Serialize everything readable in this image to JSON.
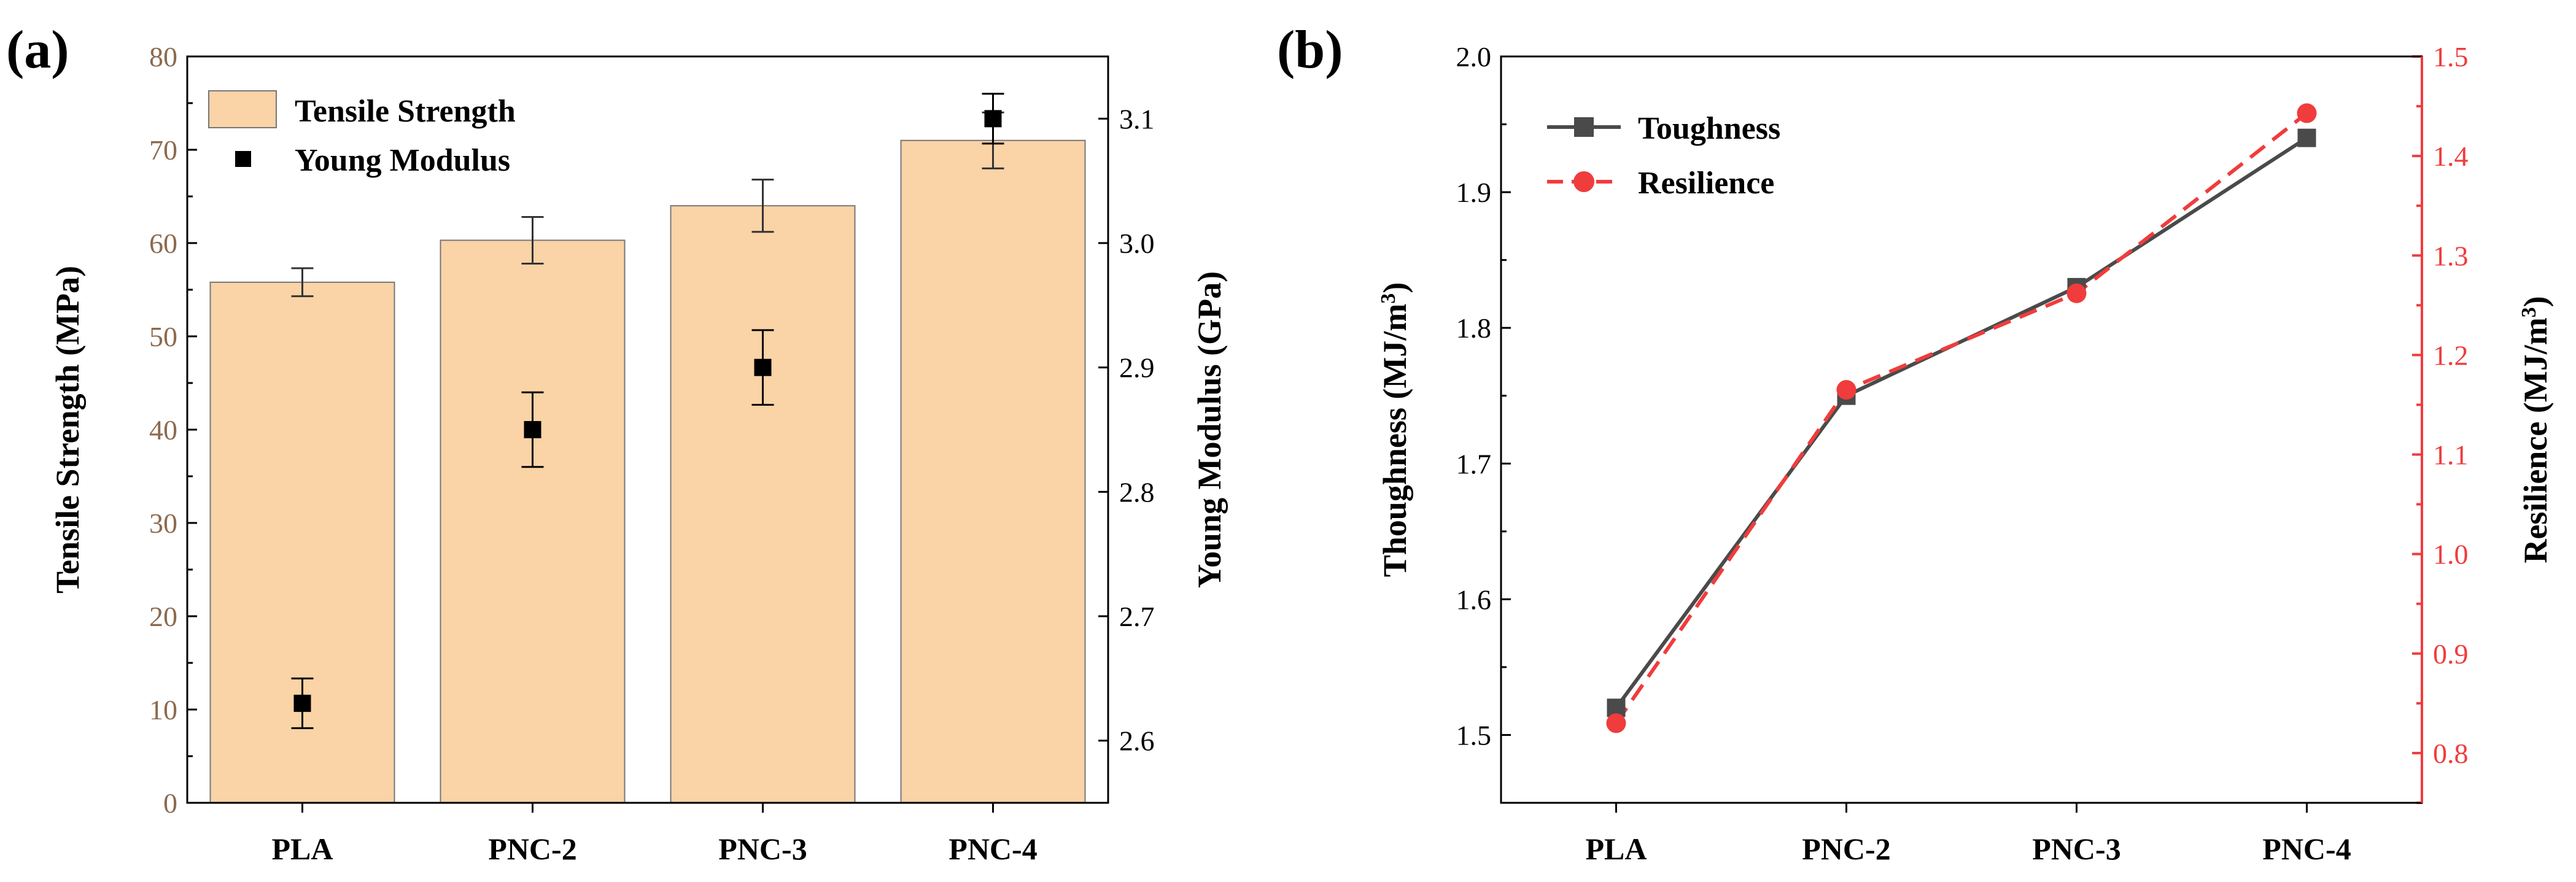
{
  "chart_data": [
    {
      "type": "bar",
      "panel_label": "(a)",
      "categories": [
        "PLA",
        "PNC-2",
        "PNC-3",
        "PNC-4"
      ],
      "series": [
        {
          "name": "Tensile Strength",
          "kind": "bar",
          "axis": "left",
          "values": [
            55.8,
            60.3,
            64.0,
            71.0
          ],
          "errors": [
            1.5,
            2.5,
            2.8,
            3.0
          ],
          "color": "#FAD3A7"
        },
        {
          "name": "Young Modulus",
          "kind": "scatter",
          "axis": "right",
          "values": [
            2.63,
            2.85,
            2.9,
            3.1
          ],
          "errors": [
            0.02,
            0.03,
            0.03,
            0.02
          ],
          "color": "#000000"
        }
      ],
      "ylabel": "Tensile Strength (MPa)",
      "ylim": [
        0,
        80
      ],
      "yticks": [
        0,
        10,
        20,
        30,
        40,
        50,
        60,
        70,
        80
      ],
      "y2label": "Young Modulus (GPa)",
      "y2lim": [
        2.55,
        3.15
      ],
      "y2ticks": [
        "2.6",
        "2.7",
        "2.8",
        "2.9",
        "3.0",
        "3.1"
      ],
      "left_axis_color": "#8C6A4F",
      "legend": "top-left"
    },
    {
      "type": "line",
      "panel_label": "(b)",
      "categories": [
        "PLA",
        "PNC-2",
        "PNC-3",
        "PNC-4"
      ],
      "series": [
        {
          "name": "Toughness",
          "axis": "left",
          "values": [
            1.52,
            1.75,
            1.83,
            1.94
          ],
          "color": "#4A4A4A",
          "marker": "square",
          "line": "solid"
        },
        {
          "name": "Resilience",
          "axis": "right",
          "values": [
            0.83,
            1.165,
            1.262,
            1.443
          ],
          "color": "#F03C3C",
          "marker": "circle",
          "line": "dashed"
        }
      ],
      "ylabel_base": "Thoughness (MJ/m",
      "y2label_base": "Resilience (MJ/m",
      "unit_exponent": "3",
      "unit_close": ")",
      "ylim": [
        1.45,
        2.0
      ],
      "yticks": [
        "1.5",
        "1.6",
        "1.7",
        "1.8",
        "1.9",
        "2.0"
      ],
      "y2lim": [
        0.75,
        1.5
      ],
      "y2ticks": [
        "0.8",
        "0.9",
        "1.0",
        "1.1",
        "1.2",
        "1.3",
        "1.4",
        "1.5"
      ],
      "right_axis_color": "#F03C3C",
      "legend": "top-left"
    }
  ]
}
